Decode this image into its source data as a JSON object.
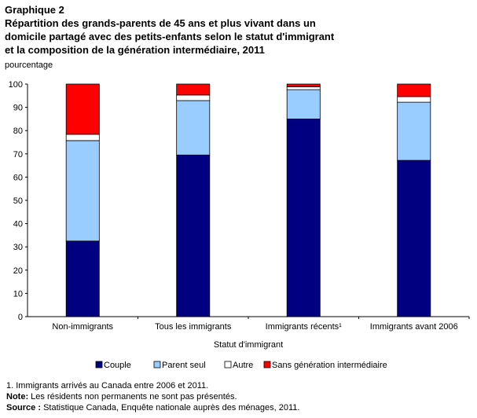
{
  "chart_data": {
    "type": "stacked-bar",
    "title_label": "Graphique 2",
    "title_lines": [
      "Répartition des grands-parents de 45 ans et plus vivant dans un",
      "domicile partagé avec des petits-enfants selon le statut d'immigrant",
      "et la composition de la génération intermédiaire, 2011"
    ],
    "y_axis_label": "pourcentage",
    "x_axis_label": "Statut d'immigrant",
    "categories": [
      "Non-immigrants",
      "Tous les immigrants",
      "Immigrants récents¹",
      "Immigrants avant 2006"
    ],
    "series": [
      {
        "name": "Couple",
        "color": "#000080",
        "values": [
          32.5,
          69.5,
          85.0,
          67.2
        ]
      },
      {
        "name": "Parent seul",
        "color": "#99ccff",
        "values": [
          43.2,
          23.4,
          12.6,
          25.0
        ]
      },
      {
        "name": "Autre",
        "color": "#ffffff",
        "values": [
          2.7,
          2.4,
          1.2,
          2.4
        ]
      },
      {
        "name": "Sans génération intermédiaire",
        "color": "#ff0000",
        "values": [
          21.6,
          4.7,
          1.2,
          5.4
        ]
      }
    ],
    "ylim": [
      0,
      100
    ],
    "yticks": [
      0,
      10,
      20,
      30,
      40,
      50,
      60,
      70,
      80,
      90,
      100
    ],
    "footnote": "1. Immigrants arrivés au Canada entre 2006 et 2011.",
    "note": {
      "label": "Note:",
      "text": " Les résidents non permanents ne sont pas présentés."
    },
    "source": {
      "label": "Source :",
      "text": " Statistique Canada, Enquête nationale auprès des ménages, 2011."
    }
  }
}
